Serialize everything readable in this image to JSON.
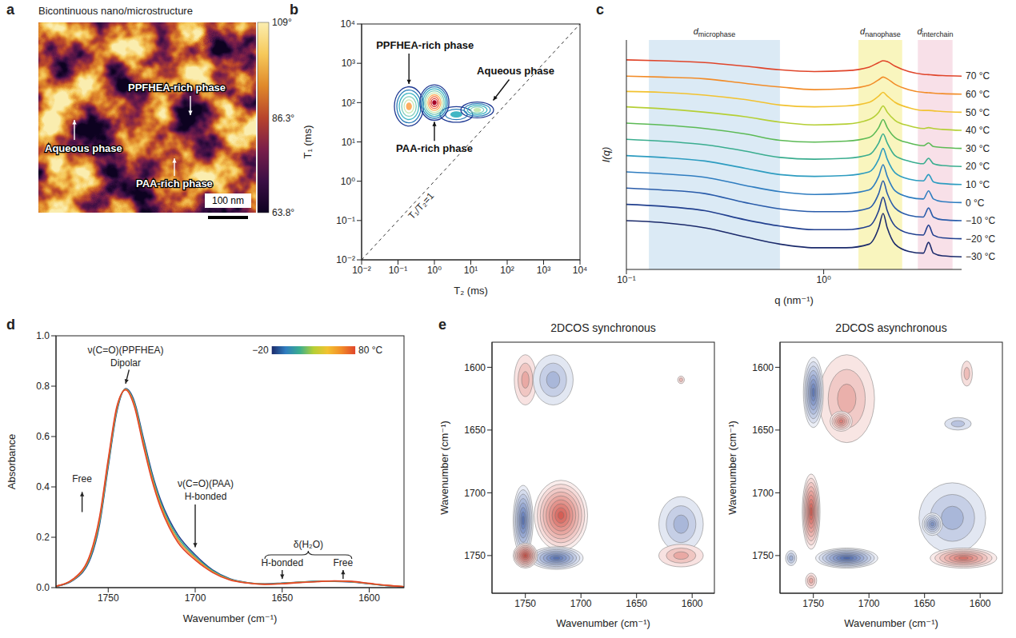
{
  "chart_data": [
    {
      "panel": "a",
      "type": "image",
      "title": "Bicontinuous nano/microstructure",
      "annotations": [
        "PPFHEA-rich phase",
        "Aqueous phase",
        "PAA-rich phase"
      ],
      "scale_bar": "100 nm",
      "colorbar": {
        "range": [
          63.8,
          109
        ],
        "ticks": [
          {
            "value": 109,
            "label": "109°"
          },
          {
            "value": 86.3,
            "label": "86.3°"
          },
          {
            "value": 63.8,
            "label": "63.8°"
          }
        ],
        "colors": [
          "#0d0221",
          "#3b0f45",
          "#7a1e4a",
          "#b8442c",
          "#e0892a",
          "#f6c95a",
          "#fbeeb0"
        ]
      }
    },
    {
      "panel": "b",
      "type": "contour",
      "xlabel": "T₂ (ms)",
      "ylabel": "T₁ (ms)",
      "log": true,
      "xlim": [
        0.01,
        10000
      ],
      "ylim": [
        0.01,
        10000
      ],
      "xticks": [
        {
          "value": 0.01,
          "label": "10⁻²"
        },
        {
          "value": 0.1,
          "label": "10⁻¹"
        },
        {
          "value": 1,
          "label": "10⁰"
        },
        {
          "value": 10,
          "label": "10¹"
        },
        {
          "value": 100,
          "label": "10²"
        },
        {
          "value": 1000,
          "label": "10³"
        },
        {
          "value": 10000,
          "label": "10⁴"
        }
      ],
      "yticks": [
        {
          "value": 0.01,
          "label": "10⁻²"
        },
        {
          "value": 0.1,
          "label": "10⁻¹"
        },
        {
          "value": 1,
          "label": "10⁰"
        },
        {
          "value": 10,
          "label": "10¹"
        },
        {
          "value": 100,
          "label": "10²"
        },
        {
          "value": 1000,
          "label": "10³"
        },
        {
          "value": 10000,
          "label": "10⁴"
        }
      ],
      "reference_line": {
        "label": "T₁/T₂=1",
        "x": [
          0.01,
          10000
        ],
        "y": [
          0.01,
          10000
        ],
        "line_style": "dashed"
      },
      "contour_colors": [
        "#1f3a93",
        "#2c7fb8",
        "#41b6c4",
        "#7fcdbb",
        "#c7e9b4",
        "#fdae61",
        "#f46d43",
        "#d73027",
        "#a50026"
      ],
      "peaks": [
        {
          "label": "PPFHEA-rich phase",
          "T2": 0.2,
          "T1": 80,
          "spread_T2": 0.4,
          "spread_T1": 0.5,
          "amplitude": 0.7
        },
        {
          "T2": 4,
          "T1": 50,
          "spread_T2": 0.45,
          "spread_T1": 0.2,
          "amplitude": 0.35
        },
        {
          "label": "Aqueous phase",
          "T2": 15,
          "T1": 65,
          "spread_T2": 0.45,
          "spread_T1": 0.2,
          "amplitude": 0.5
        },
        {
          "label": "PAA-rich phase",
          "T2": 1,
          "T1": 100,
          "spread_T2": 0.4,
          "spread_T1": 0.45,
          "amplitude": 1
        }
      ]
    },
    {
      "panel": "c",
      "type": "line",
      "xlabel": "q (nm⁻¹)",
      "ylabel": "I(q)",
      "log": "x",
      "tick_labels": "x",
      "xlim": [
        0.1,
        5
      ],
      "ylim": [
        -0.7,
        12
      ],
      "xticks": [
        {
          "value": 0.1,
          "label": "10⁻¹"
        },
        {
          "value": 1,
          "label": "10⁰"
        }
      ],
      "regions": [
        {
          "symbol": "d",
          "subscript": "microphase",
          "from": 0.13,
          "to": 0.6,
          "color": "#cfe3f1"
        },
        {
          "symbol": "d",
          "subscript": "nanophase",
          "from": 1.5,
          "to": 2.5,
          "color": "#f7f1a8"
        },
        {
          "symbol": "d",
          "subscript": "interchain",
          "from": 3,
          "to": 4.5,
          "color": "#f5d5e0"
        }
      ],
      "x": [
        0.1,
        0.15,
        0.25,
        0.4,
        0.6,
        0.9,
        1.3,
        1.7,
        1.9,
        2.0,
        2.1,
        2.3,
        2.7,
        3.2,
        3.4,
        3.6,
        4.0,
        5.0
      ],
      "series": [
        {
          "name": "−30 °C",
          "color": "#1b2a6b",
          "values": [
            2.0,
            1.9,
            1.6,
            1.1,
            0.7,
            0.5,
            0.5,
            0.7,
            1.6,
            2.4,
            1.6,
            0.7,
            0.3,
            0.2,
            0.8,
            0.2,
            0.05,
            0
          ]
        },
        {
          "name": "−20 °C",
          "color": "#22408f",
          "values": [
            2.9,
            2.8,
            2.55,
            2.05,
            1.7,
            1.5,
            1.5,
            1.7,
            2.55,
            3.3,
            2.55,
            1.7,
            1.3,
            1.2,
            1.75,
            1.2,
            1.05,
            1
          ]
        },
        {
          "name": "−10 °C",
          "color": "#2a5caa",
          "values": [
            3.8,
            3.7,
            3.5,
            3.0,
            2.65,
            2.5,
            2.5,
            2.7,
            3.5,
            4.2,
            3.5,
            2.7,
            2.3,
            2.2,
            2.7,
            2.2,
            2.05,
            2
          ]
        },
        {
          "name": "0 °C",
          "color": "#2f7dc0",
          "values": [
            4.7,
            4.6,
            4.4,
            3.95,
            3.6,
            3.45,
            3.5,
            3.7,
            4.45,
            5.1,
            4.45,
            3.65,
            3.3,
            3.2,
            3.65,
            3.2,
            3.05,
            3
          ]
        },
        {
          "name": "10 °C",
          "color": "#2d9cc0",
          "values": [
            5.6,
            5.5,
            5.3,
            4.9,
            4.55,
            4.45,
            4.5,
            4.7,
            5.4,
            6.0,
            5.4,
            4.65,
            4.3,
            4.2,
            4.55,
            4.15,
            4.05,
            4
          ]
        },
        {
          "name": "20 °C",
          "color": "#3aad8f",
          "values": [
            6.5,
            6.4,
            6.2,
            5.85,
            5.5,
            5.4,
            5.45,
            5.65,
            6.3,
            6.8,
            6.3,
            5.6,
            5.3,
            5.15,
            5.45,
            5.15,
            5.05,
            5
          ]
        },
        {
          "name": "30 °C",
          "color": "#5cba55",
          "values": [
            7.4,
            7.3,
            7.1,
            6.8,
            6.45,
            6.35,
            6.4,
            6.6,
            7.15,
            7.6,
            7.15,
            6.6,
            6.3,
            6.15,
            6.3,
            6.1,
            6.05,
            6
          ]
        },
        {
          "name": "40 °C",
          "color": "#b5cf35",
          "values": [
            8.3,
            8.2,
            8.0,
            7.75,
            7.45,
            7.3,
            7.35,
            7.6,
            8.0,
            8.35,
            8.0,
            7.55,
            7.25,
            7.1,
            7.15,
            7.1,
            7.05,
            7
          ]
        },
        {
          "name": "50 °C",
          "color": "#f2c230",
          "values": [
            9.15,
            9.1,
            8.95,
            8.7,
            8.4,
            8.3,
            8.35,
            8.55,
            8.9,
            9.1,
            8.9,
            8.55,
            8.25,
            8.1,
            8.1,
            8.08,
            8.04,
            8
          ]
        },
        {
          "name": "60 °C",
          "color": "#f28c28",
          "values": [
            10.0,
            9.95,
            9.85,
            9.6,
            9.4,
            9.25,
            9.3,
            9.5,
            9.8,
            9.95,
            9.85,
            9.55,
            9.25,
            9.1,
            9.08,
            9.06,
            9.03,
            9
          ]
        },
        {
          "name": "70 °C",
          "color": "#e0452a",
          "values": [
            10.9,
            10.85,
            10.75,
            10.55,
            10.35,
            10.25,
            10.3,
            10.5,
            10.75,
            10.85,
            10.8,
            10.55,
            10.25,
            10.1,
            10.08,
            10.06,
            10.03,
            10
          ]
        }
      ]
    },
    {
      "panel": "d",
      "type": "line",
      "xlabel": "Wavenumber (cm⁻¹)",
      "ylabel": "Absorbance",
      "xlim": [
        1780,
        1580
      ],
      "ylim": [
        0,
        1
      ],
      "xticks": [
        1750,
        1700,
        1650,
        1600
      ],
      "yticks": [
        {
          "value": 0,
          "label": "0.0"
        },
        0.2,
        0.4,
        0.6,
        0.8,
        {
          "value": 1,
          "label": "1.0"
        }
      ],
      "annotations": [
        "ν(C=O)(PPFHEA)",
        "Dipolar",
        "Free",
        "ν(C=O)(PAA)",
        "H-bonded",
        "δ(H₂O)",
        "H-bonded",
        "Free"
      ],
      "colorbar": {
        "range": [
          -20,
          80
        ],
        "ticks": [
          {
            "value": -20,
            "label": "−20"
          },
          {
            "value": 80,
            "label": "80 °C"
          }
        ],
        "colors": [
          "#1b2a6b",
          "#2f7dc0",
          "#3aad8f",
          "#b5cf35",
          "#f2c230",
          "#f28c28",
          "#e0452a"
        ]
      },
      "x": [
        1780,
        1770,
        1760,
        1755,
        1750,
        1745,
        1740,
        1735,
        1730,
        1725,
        1720,
        1715,
        1710,
        1700,
        1690,
        1680,
        1670,
        1660,
        1650,
        1640,
        1630,
        1620,
        1610,
        1600,
        1590,
        1580
      ],
      "series": [
        {
          "color": "#22408f",
          "values": [
            0.005,
            0.03,
            0.12,
            0.25,
            0.48,
            0.7,
            0.79,
            0.74,
            0.6,
            0.46,
            0.35,
            0.27,
            0.21,
            0.13,
            0.07,
            0.035,
            0.02,
            0.015,
            0.018,
            0.022,
            0.025,
            0.025,
            0.022,
            0.015,
            0.008,
            0.004
          ]
        },
        {
          "color": "#3aad8f",
          "values": [
            0.005,
            0.032,
            0.127,
            0.26,
            0.49,
            0.707,
            0.788,
            0.733,
            0.59,
            0.45,
            0.34,
            0.26,
            0.2,
            0.123,
            0.067,
            0.033,
            0.019,
            0.014,
            0.017,
            0.021,
            0.025,
            0.026,
            0.023,
            0.016,
            0.008,
            0.004
          ]
        },
        {
          "color": "#f28c28",
          "values": [
            0.006,
            0.033,
            0.133,
            0.27,
            0.5,
            0.713,
            0.787,
            0.727,
            0.58,
            0.44,
            0.33,
            0.25,
            0.19,
            0.117,
            0.063,
            0.032,
            0.019,
            0.014,
            0.016,
            0.021,
            0.024,
            0.026,
            0.024,
            0.016,
            0.009,
            0.004
          ]
        },
        {
          "color": "#e0452a",
          "values": [
            0.006,
            0.035,
            0.14,
            0.28,
            0.51,
            0.72,
            0.785,
            0.72,
            0.57,
            0.43,
            0.32,
            0.24,
            0.18,
            0.11,
            0.06,
            0.03,
            0.018,
            0.013,
            0.015,
            0.02,
            0.024,
            0.027,
            0.025,
            0.017,
            0.009,
            0.004
          ]
        }
      ]
    },
    {
      "panel": "e",
      "type": "contour",
      "xlabel": "Wavenumber (cm⁻¹)",
      "ylabel": "Wavenumber (cm⁻¹)",
      "xlim": [
        1780,
        1580
      ],
      "ylim": [
        1780,
        1580
      ],
      "xticks": [
        1750,
        1700,
        1650,
        1600
      ],
      "yticks": [
        1750,
        1700,
        1650,
        1600
      ],
      "contour_colors": {
        "positive": "#d04a3f",
        "negative": "#3a5aa8"
      },
      "charts": [
        {
          "title": "2DCOS synchronous",
          "peaks": [
            {
              "x": 1610,
              "y": 1610,
              "spread_x": 3,
              "spread_y": 3,
              "amplitude": 0.15
            },
            {
              "x": 1750,
              "y": 1610,
              "spread_x": 10,
              "spread_y": 20,
              "amplitude": 0.3
            },
            {
              "x": 1725,
              "y": 1610,
              "spread_x": 18,
              "spread_y": 20,
              "amplitude": -0.25
            },
            {
              "x": 1610,
              "y": 1725,
              "spread_x": 20,
              "spread_y": 22,
              "amplitude": -0.25
            },
            {
              "x": 1610,
              "y": 1750,
              "spread_x": 20,
              "spread_y": 9,
              "amplitude": 0.3
            },
            {
              "x": 1718,
              "y": 1718,
              "spread_x": 24,
              "spread_y": 28,
              "amplitude": 0.85
            },
            {
              "x": 1752,
              "y": 1722,
              "spread_x": 9,
              "spread_y": 28,
              "amplitude": -0.8
            },
            {
              "x": 1722,
              "y": 1752,
              "spread_x": 24,
              "spread_y": 9,
              "amplitude": -0.8
            },
            {
              "x": 1750,
              "y": 1750,
              "spread_x": 11,
              "spread_y": 10,
              "amplitude": 1
            }
          ]
        },
        {
          "title": "2DCOS asynchronous",
          "peaks": [
            {
              "x": 1720,
              "y": 1625,
              "spread_x": 25,
              "spread_y": 35,
              "amplitude": 0.25
            },
            {
              "x": 1725,
              "y": 1643,
              "spread_x": 10,
              "spread_y": 8,
              "amplitude": 0.6
            },
            {
              "x": 1750,
              "y": 1620,
              "spread_x": 9,
              "spread_y": 28,
              "amplitude": -0.75
            },
            {
              "x": 1625,
              "y": 1720,
              "spread_x": 30,
              "spread_y": 28,
              "amplitude": -0.25
            },
            {
              "x": 1643,
              "y": 1725,
              "spread_x": 9,
              "spread_y": 9,
              "amplitude": -0.55
            },
            {
              "x": 1615,
              "y": 1752,
              "spread_x": 30,
              "spread_y": 8,
              "amplitude": 0.7
            },
            {
              "x": 1752,
              "y": 1715,
              "spread_x": 8,
              "spread_y": 30,
              "amplitude": 0.9
            },
            {
              "x": 1720,
              "y": 1752,
              "spread_x": 28,
              "spread_y": 8,
              "amplitude": -0.9
            },
            {
              "x": 1612,
              "y": 1605,
              "spread_x": 5,
              "spread_y": 10,
              "amplitude": 0.15
            },
            {
              "x": 1620,
              "y": 1645,
              "spread_x": 12,
              "spread_y": 5,
              "amplitude": -0.15
            },
            {
              "x": 1770,
              "y": 1752,
              "spread_x": 5,
              "spread_y": 6,
              "amplitude": -0.3
            },
            {
              "x": 1752,
              "y": 1770,
              "spread_x": 5,
              "spread_y": 6,
              "amplitude": 0.3
            }
          ]
        }
      ]
    }
  ]
}
